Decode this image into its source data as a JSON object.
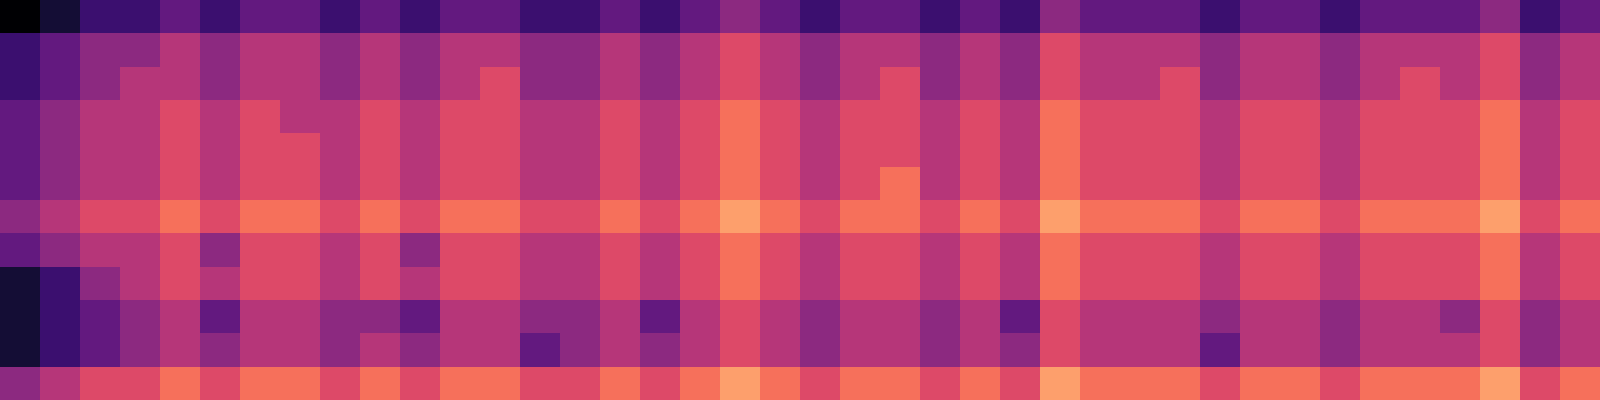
{
  "chart_data": {
    "type": "heatmap",
    "tick_labels": false,
    "zlim": [
      0,
      10
    ],
    "cells": [
      [
        0,
        1,
        2,
        2,
        3,
        2,
        3,
        3,
        2,
        3,
        2,
        3,
        3,
        2,
        2,
        3,
        2,
        3,
        4,
        3,
        2,
        3,
        3,
        2,
        3,
        2,
        4,
        3,
        3,
        3,
        2,
        3,
        3,
        2,
        3,
        3,
        3,
        4,
        2,
        3
      ],
      [
        2,
        3,
        4,
        4,
        5,
        4,
        5,
        5,
        4,
        5,
        4,
        5,
        5,
        4,
        4,
        5,
        4,
        5,
        6,
        5,
        4,
        5,
        5,
        4,
        5,
        4,
        6,
        5,
        5,
        5,
        4,
        5,
        5,
        4,
        5,
        5,
        5,
        6,
        4,
        5
      ],
      [
        2,
        3,
        4,
        5,
        5,
        4,
        5,
        5,
        4,
        5,
        4,
        5,
        6,
        4,
        4,
        5,
        4,
        5,
        6,
        5,
        4,
        5,
        6,
        4,
        5,
        4,
        6,
        5,
        5,
        6,
        4,
        5,
        5,
        4,
        5,
        6,
        5,
        6,
        4,
        5
      ],
      [
        3,
        4,
        5,
        5,
        6,
        5,
        6,
        5,
        5,
        6,
        5,
        6,
        6,
        5,
        5,
        6,
        5,
        6,
        7,
        6,
        5,
        6,
        6,
        5,
        6,
        5,
        7,
        6,
        6,
        6,
        5,
        6,
        6,
        5,
        6,
        6,
        6,
        7,
        5,
        6
      ],
      [
        3,
        4,
        5,
        5,
        6,
        5,
        6,
        6,
        5,
        6,
        5,
        6,
        6,
        5,
        5,
        6,
        5,
        6,
        7,
        6,
        5,
        6,
        6,
        5,
        6,
        5,
        7,
        6,
        6,
        6,
        5,
        6,
        6,
        5,
        6,
        6,
        6,
        7,
        5,
        6
      ],
      [
        3,
        4,
        5,
        5,
        6,
        5,
        6,
        6,
        5,
        6,
        5,
        6,
        6,
        5,
        5,
        6,
        5,
        6,
        7,
        6,
        5,
        6,
        7,
        5,
        6,
        5,
        7,
        6,
        6,
        6,
        5,
        6,
        6,
        5,
        6,
        6,
        6,
        7,
        5,
        6
      ],
      [
        4,
        5,
        6,
        6,
        7,
        6,
        7,
        7,
        6,
        7,
        6,
        7,
        7,
        6,
        6,
        7,
        6,
        7,
        8,
        7,
        6,
        7,
        7,
        6,
        7,
        6,
        8,
        7,
        7,
        7,
        6,
        7,
        7,
        6,
        7,
        7,
        7,
        8,
        6,
        7
      ],
      [
        3,
        4,
        5,
        5,
        6,
        4,
        6,
        6,
        5,
        6,
        4,
        6,
        6,
        5,
        5,
        6,
        5,
        6,
        7,
        6,
        5,
        6,
        6,
        5,
        6,
        5,
        7,
        6,
        6,
        6,
        5,
        6,
        6,
        5,
        6,
        6,
        6,
        7,
        5,
        6
      ],
      [
        1,
        2,
        4,
        5,
        6,
        5,
        6,
        6,
        5,
        6,
        5,
        6,
        6,
        5,
        5,
        6,
        5,
        6,
        7,
        6,
        5,
        6,
        6,
        5,
        6,
        5,
        7,
        6,
        6,
        6,
        5,
        6,
        6,
        5,
        6,
        6,
        6,
        7,
        5,
        6
      ],
      [
        1,
        2,
        3,
        4,
        5,
        3,
        5,
        5,
        4,
        4,
        3,
        5,
        5,
        4,
        4,
        5,
        3,
        5,
        6,
        5,
        4,
        5,
        5,
        4,
        5,
        3,
        6,
        5,
        5,
        5,
        4,
        5,
        5,
        4,
        5,
        5,
        4,
        6,
        4,
        5
      ],
      [
        1,
        2,
        3,
        4,
        5,
        4,
        5,
        5,
        4,
        5,
        4,
        5,
        5,
        3,
        4,
        5,
        4,
        5,
        6,
        5,
        4,
        5,
        5,
        4,
        5,
        4,
        6,
        5,
        5,
        5,
        3,
        5,
        5,
        4,
        5,
        5,
        5,
        6,
        4,
        5
      ],
      [
        4,
        5,
        6,
        6,
        7,
        6,
        7,
        7,
        6,
        7,
        6,
        7,
        7,
        6,
        6,
        7,
        6,
        7,
        8,
        7,
        6,
        7,
        7,
        6,
        7,
        6,
        8,
        7,
        7,
        7,
        6,
        7,
        7,
        6,
        7,
        7,
        7,
        8,
        6,
        7
      ]
    ]
  }
}
